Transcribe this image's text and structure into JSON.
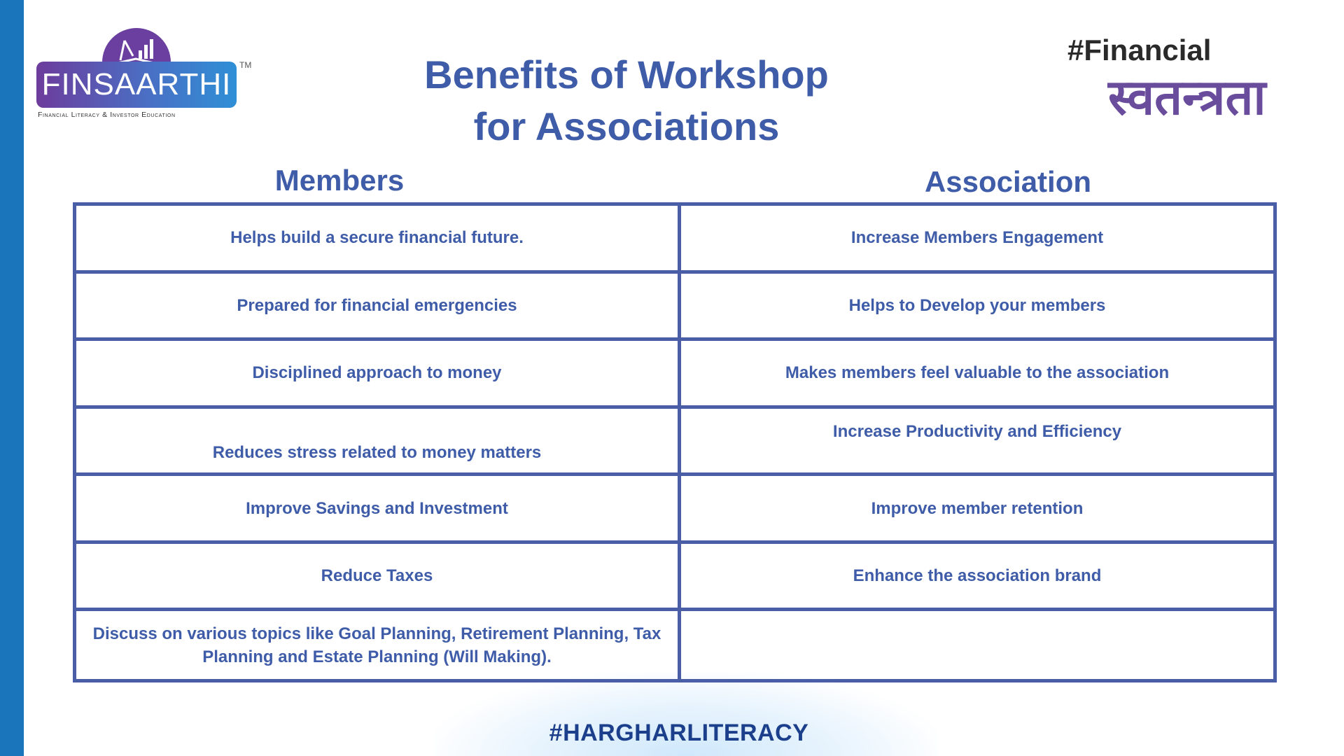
{
  "brand": {
    "logo_text": "FINSAARTHI",
    "trademark": "TM",
    "tagline": "Financial Literacy & Investor Education"
  },
  "title_line1": "Benefits of Workshop",
  "title_line2": "for Associations",
  "hashtag_top": {
    "line1": "#Financial",
    "line2": "स्वतन्त्रता"
  },
  "columns": {
    "members": "Members",
    "association": "Association"
  },
  "rows": [
    {
      "member": "Helps build a secure financial future.",
      "association": "Increase Members Engagement"
    },
    {
      "member": "Prepared for financial emergencies",
      "association": "Helps to Develop your members"
    },
    {
      "member": "Disciplined approach to money",
      "association": "Makes members feel valuable to the association"
    },
    {
      "member": "Reduces stress related to money matters",
      "association": "Increase Productivity and Efficiency"
    },
    {
      "member": "Improve Savings and Investment",
      "association": "Improve member retention"
    },
    {
      "member": "Reduce Taxes",
      "association": "Enhance the association brand"
    },
    {
      "member": "Discuss on various topics like Goal Planning, Retirement Planning, Tax Planning and Estate Planning (Will Making).",
      "association": ""
    }
  ],
  "hashtag_bottom": "#HARGHARLITERACY",
  "colors": {
    "accent": "#3f5ca8",
    "border": "#4a5ea8",
    "left_bar": "#1b75bb",
    "logo_purple": "#6a3fa0"
  }
}
